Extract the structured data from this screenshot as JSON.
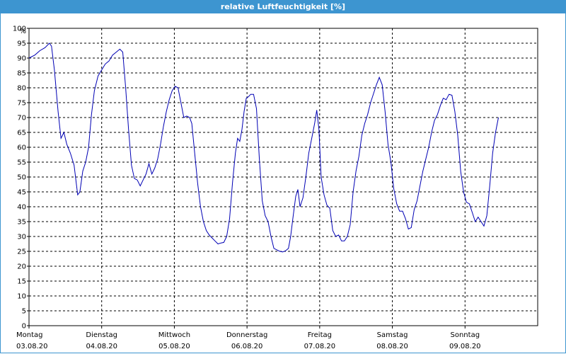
{
  "window": {
    "title": "relative Luftfeuchtigkeit [%]"
  },
  "chart_data": {
    "type": "line",
    "title": "relative Luftfeuchtigkeit [%]",
    "ylabel": "%",
    "xlabel": "",
    "ylim": [
      0,
      100
    ],
    "yticks": [
      0,
      5,
      10,
      15,
      20,
      25,
      30,
      35,
      40,
      45,
      50,
      55,
      60,
      65,
      70,
      75,
      80,
      85,
      90,
      95,
      100
    ],
    "grid": true,
    "grid_style": "dashed",
    "x_domain_days": 7,
    "x_ticks": [
      {
        "day": "Montag",
        "date": "03.08.20"
      },
      {
        "day": "Dienstag",
        "date": "04.08.20"
      },
      {
        "day": "Mittwoch",
        "date": "05.08.20"
      },
      {
        "day": "Donnerstag",
        "date": "06.08.20"
      },
      {
        "day": "Freitag",
        "date": "07.08.20"
      },
      {
        "day": "Samstag",
        "date": "08.08.20"
      },
      {
        "day": "Sonntag",
        "date": "09.08.20"
      }
    ],
    "series": [
      {
        "color": "#0000b4",
        "points": [
          [
            0.0,
            90
          ],
          [
            0.08,
            91
          ],
          [
            0.15,
            92.5
          ],
          [
            0.22,
            93.5
          ],
          [
            0.28,
            95
          ],
          [
            0.31,
            94
          ],
          [
            0.35,
            86
          ],
          [
            0.4,
            72
          ],
          [
            0.44,
            63
          ],
          [
            0.48,
            65
          ],
          [
            0.52,
            61
          ],
          [
            0.57,
            58
          ],
          [
            0.62,
            54
          ],
          [
            0.67,
            44
          ],
          [
            0.7,
            45
          ],
          [
            0.74,
            52
          ],
          [
            0.78,
            55
          ],
          [
            0.82,
            60
          ],
          [
            0.86,
            71
          ],
          [
            0.9,
            79
          ],
          [
            0.95,
            84
          ],
          [
            1.0,
            86
          ],
          [
            1.05,
            88
          ],
          [
            1.1,
            89
          ],
          [
            1.15,
            91
          ],
          [
            1.2,
            92
          ],
          [
            1.25,
            93
          ],
          [
            1.29,
            92
          ],
          [
            1.33,
            80
          ],
          [
            1.37,
            66
          ],
          [
            1.41,
            54
          ],
          [
            1.45,
            49.5
          ],
          [
            1.49,
            49
          ],
          [
            1.53,
            47
          ],
          [
            1.57,
            49
          ],
          [
            1.61,
            51
          ],
          [
            1.65,
            54.5
          ],
          [
            1.69,
            51
          ],
          [
            1.73,
            53
          ],
          [
            1.77,
            56
          ],
          [
            1.81,
            61
          ],
          [
            1.85,
            67
          ],
          [
            1.89,
            72
          ],
          [
            1.93,
            76
          ],
          [
            1.97,
            79
          ],
          [
            2.01,
            80.5
          ],
          [
            2.05,
            80
          ],
          [
            2.09,
            75
          ],
          [
            2.13,
            70
          ],
          [
            2.17,
            70.5
          ],
          [
            2.21,
            70
          ],
          [
            2.24,
            68
          ],
          [
            2.28,
            58
          ],
          [
            2.32,
            48
          ],
          [
            2.36,
            40
          ],
          [
            2.4,
            35
          ],
          [
            2.44,
            32
          ],
          [
            2.48,
            30.5
          ],
          [
            2.52,
            29.5
          ],
          [
            2.56,
            28.5
          ],
          [
            2.6,
            27.5
          ],
          [
            2.64,
            27.8
          ],
          [
            2.68,
            28
          ],
          [
            2.72,
            30
          ],
          [
            2.76,
            36
          ],
          [
            2.8,
            48
          ],
          [
            2.84,
            58
          ],
          [
            2.87,
            63
          ],
          [
            2.9,
            62
          ],
          [
            2.93,
            66
          ],
          [
            2.96,
            72
          ],
          [
            2.99,
            76.5
          ],
          [
            3.02,
            77
          ],
          [
            3.05,
            77.8
          ],
          [
            3.09,
            77.8
          ],
          [
            3.13,
            73
          ],
          [
            3.17,
            56
          ],
          [
            3.21,
            42
          ],
          [
            3.25,
            37
          ],
          [
            3.29,
            35
          ],
          [
            3.33,
            30
          ],
          [
            3.37,
            26
          ],
          [
            3.41,
            25.5
          ],
          [
            3.45,
            25
          ],
          [
            3.49,
            24.8
          ],
          [
            3.53,
            25.2
          ],
          [
            3.57,
            26
          ],
          [
            3.6,
            30
          ],
          [
            3.63,
            36
          ],
          [
            3.67,
            43.5
          ],
          [
            3.7,
            45.8
          ],
          [
            3.73,
            40
          ],
          [
            3.77,
            43
          ],
          [
            3.81,
            50
          ],
          [
            3.85,
            58
          ],
          [
            3.89,
            63
          ],
          [
            3.93,
            68
          ],
          [
            3.96,
            72.5
          ],
          [
            3.99,
            66
          ],
          [
            4.02,
            50
          ],
          [
            4.06,
            44
          ],
          [
            4.1,
            40.5
          ],
          [
            4.14,
            39.5
          ],
          [
            4.18,
            32
          ],
          [
            4.22,
            30
          ],
          [
            4.26,
            30.5
          ],
          [
            4.3,
            28.5
          ],
          [
            4.34,
            28.5
          ],
          [
            4.38,
            30
          ],
          [
            4.42,
            34
          ],
          [
            4.46,
            45
          ],
          [
            4.5,
            52
          ],
          [
            4.54,
            57
          ],
          [
            4.58,
            64
          ],
          [
            4.62,
            68
          ],
          [
            4.66,
            71
          ],
          [
            4.7,
            75
          ],
          [
            4.74,
            78
          ],
          [
            4.78,
            81
          ],
          [
            4.82,
            83.5
          ],
          [
            4.86,
            81
          ],
          [
            4.9,
            72
          ],
          [
            4.94,
            61
          ],
          [
            4.98,
            55
          ],
          [
            5.02,
            46
          ],
          [
            5.06,
            41
          ],
          [
            5.1,
            38.5
          ],
          [
            5.14,
            38.5
          ],
          [
            5.18,
            36
          ],
          [
            5.22,
            32.5
          ],
          [
            5.26,
            33
          ],
          [
            5.3,
            39
          ],
          [
            5.34,
            42
          ],
          [
            5.38,
            47
          ],
          [
            5.42,
            52
          ],
          [
            5.46,
            56
          ],
          [
            5.5,
            60
          ],
          [
            5.54,
            65
          ],
          [
            5.58,
            69
          ],
          [
            5.62,
            71
          ],
          [
            5.66,
            74
          ],
          [
            5.7,
            76.5
          ],
          [
            5.74,
            76
          ],
          [
            5.78,
            77.8
          ],
          [
            5.82,
            77.5
          ],
          [
            5.86,
            72
          ],
          [
            5.9,
            64
          ],
          [
            5.94,
            52
          ],
          [
            5.98,
            45
          ],
          [
            6.02,
            41.5
          ],
          [
            6.06,
            41
          ],
          [
            6.1,
            38
          ],
          [
            6.14,
            35
          ],
          [
            6.18,
            36.5
          ],
          [
            6.22,
            35
          ],
          [
            6.26,
            33.5
          ],
          [
            6.3,
            37
          ],
          [
            6.34,
            47
          ],
          [
            6.38,
            58
          ],
          [
            6.42,
            65
          ],
          [
            6.46,
            70
          ]
        ]
      }
    ]
  }
}
